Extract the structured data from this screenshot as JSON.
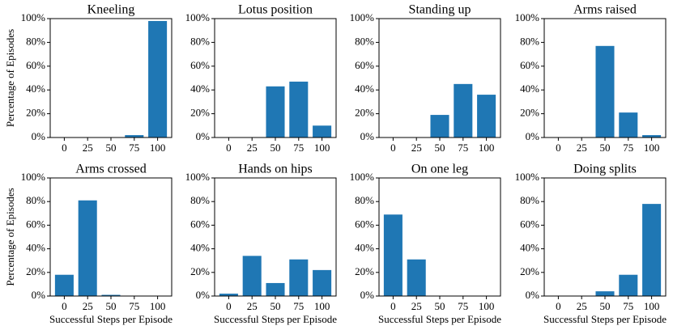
{
  "chart_data": [
    {
      "type": "bar",
      "title": "Kneeling",
      "ylabel": "Percentage of Episodes",
      "categories": [
        "0",
        "25",
        "50",
        "75",
        "100"
      ],
      "values": [
        0,
        0,
        0,
        2,
        98
      ],
      "color": "#1f77b4",
      "ylim": [
        0,
        100
      ],
      "yticks": [
        {
          "value": 0,
          "label": "0%"
        },
        {
          "value": 20,
          "label": "20%"
        },
        {
          "value": 40,
          "label": "40%"
        },
        {
          "value": 60,
          "label": "60%"
        },
        {
          "value": 80,
          "label": "80%"
        },
        {
          "value": 100,
          "label": "100%"
        }
      ]
    },
    {
      "type": "bar",
      "title": "Lotus position",
      "categories": [
        "0",
        "25",
        "50",
        "75",
        "100"
      ],
      "values": [
        0,
        0,
        43,
        47,
        10
      ],
      "color": "#1f77b4",
      "ylim": [
        0,
        100
      ],
      "yticks": [
        {
          "value": 0,
          "label": "0%"
        },
        {
          "value": 20,
          "label": "20%"
        },
        {
          "value": 40,
          "label": "40%"
        },
        {
          "value": 60,
          "label": "60%"
        },
        {
          "value": 80,
          "label": "80%"
        },
        {
          "value": 100,
          "label": "100%"
        }
      ]
    },
    {
      "type": "bar",
      "title": "Standing up",
      "categories": [
        "0",
        "25",
        "50",
        "75",
        "100"
      ],
      "values": [
        0,
        0,
        19,
        45,
        36
      ],
      "color": "#1f77b4",
      "ylim": [
        0,
        100
      ],
      "yticks": [
        {
          "value": 0,
          "label": "0%"
        },
        {
          "value": 20,
          "label": "20%"
        },
        {
          "value": 40,
          "label": "40%"
        },
        {
          "value": 60,
          "label": "60%"
        },
        {
          "value": 80,
          "label": "80%"
        },
        {
          "value": 100,
          "label": "100%"
        }
      ]
    },
    {
      "type": "bar",
      "title": "Arms raised",
      "categories": [
        "0",
        "25",
        "50",
        "75",
        "100"
      ],
      "values": [
        0,
        0,
        77,
        21,
        2
      ],
      "color": "#1f77b4",
      "ylim": [
        0,
        100
      ],
      "yticks": [
        {
          "value": 0,
          "label": "0%"
        },
        {
          "value": 20,
          "label": "20%"
        },
        {
          "value": 40,
          "label": "40%"
        },
        {
          "value": 60,
          "label": "60%"
        },
        {
          "value": 80,
          "label": "80%"
        },
        {
          "value": 100,
          "label": "100%"
        }
      ]
    },
    {
      "type": "bar",
      "title": "Arms crossed",
      "ylabel": "Percentage of Episodes",
      "xlabel": "Successful Steps per Episode",
      "categories": [
        "0",
        "25",
        "50",
        "75",
        "100"
      ],
      "values": [
        18,
        81,
        1,
        0,
        0
      ],
      "color": "#1f77b4",
      "ylim": [
        0,
        100
      ],
      "yticks": [
        {
          "value": 0,
          "label": "0%"
        },
        {
          "value": 20,
          "label": "20%"
        },
        {
          "value": 40,
          "label": "40%"
        },
        {
          "value": 60,
          "label": "60%"
        },
        {
          "value": 80,
          "label": "80%"
        },
        {
          "value": 100,
          "label": "100%"
        }
      ]
    },
    {
      "type": "bar",
      "title": "Hands on hips",
      "xlabel": "Successful Steps per Episode",
      "categories": [
        "0",
        "25",
        "50",
        "75",
        "100"
      ],
      "values": [
        2,
        34,
        11,
        31,
        22
      ],
      "color": "#1f77b4",
      "ylim": [
        0,
        100
      ],
      "yticks": [
        {
          "value": 0,
          "label": "0%"
        },
        {
          "value": 20,
          "label": "20%"
        },
        {
          "value": 40,
          "label": "40%"
        },
        {
          "value": 60,
          "label": "60%"
        },
        {
          "value": 80,
          "label": "80%"
        },
        {
          "value": 100,
          "label": "100%"
        }
      ]
    },
    {
      "type": "bar",
      "title": "On one leg",
      "xlabel": "Successful Steps per Episode",
      "categories": [
        "0",
        "25",
        "50",
        "75",
        "100"
      ],
      "values": [
        69,
        31,
        0,
        0,
        0
      ],
      "color": "#1f77b4",
      "ylim": [
        0,
        100
      ],
      "yticks": [
        {
          "value": 0,
          "label": "0%"
        },
        {
          "value": 20,
          "label": "20%"
        },
        {
          "value": 40,
          "label": "40%"
        },
        {
          "value": 60,
          "label": "60%"
        },
        {
          "value": 80,
          "label": "80%"
        },
        {
          "value": 100,
          "label": "100%"
        }
      ]
    },
    {
      "type": "bar",
      "title": "Doing splits",
      "xlabel": "Successful Steps per Episode",
      "categories": [
        "0",
        "25",
        "50",
        "75",
        "100"
      ],
      "values": [
        0,
        0,
        4,
        18,
        78
      ],
      "color": "#1f77b4",
      "ylim": [
        0,
        100
      ],
      "yticks": [
        {
          "value": 0,
          "label": "0%"
        },
        {
          "value": 20,
          "label": "20%"
        },
        {
          "value": 40,
          "label": "40%"
        },
        {
          "value": 60,
          "label": "60%"
        },
        {
          "value": 80,
          "label": "80%"
        },
        {
          "value": 100,
          "label": "100%"
        }
      ]
    }
  ]
}
